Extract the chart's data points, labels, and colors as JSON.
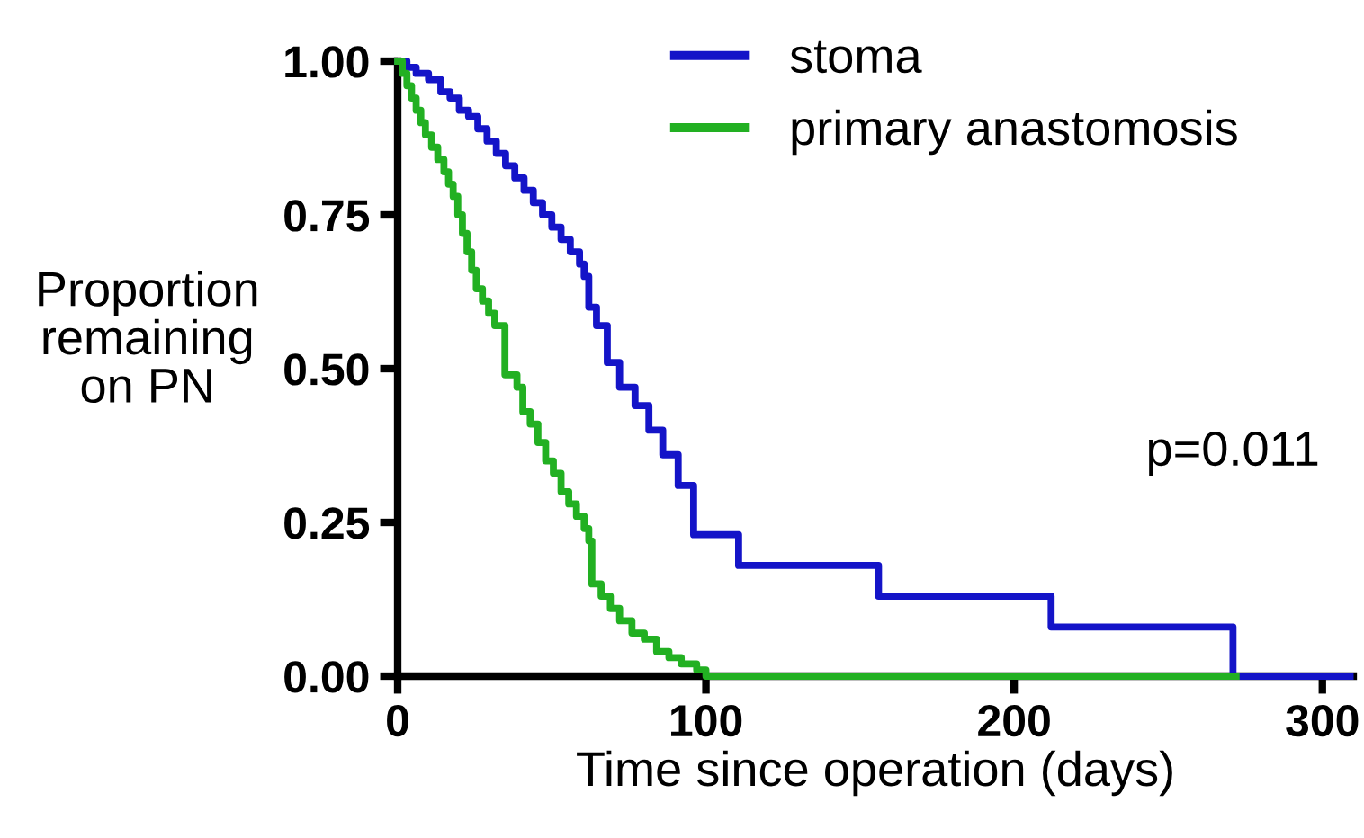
{
  "chart_data": {
    "type": "step",
    "xlabel": "Time since operation (days)",
    "ylabel": "Proportion\nremaining\non PN",
    "annotations": [
      "p=0.011"
    ],
    "series": [
      {
        "name": "stoma",
        "color": "#1414c8",
        "x": [
          0,
          3,
          6,
          10,
          14,
          17,
          20,
          23,
          26,
          29,
          32,
          35,
          38,
          41,
          44,
          47,
          50,
          53,
          56,
          59,
          60.5,
          62,
          64.5,
          68,
          72,
          77,
          81.5,
          86,
          91,
          96,
          110.6,
          156,
          212,
          271,
          309
        ],
        "values": [
          1.0,
          0.99,
          0.98,
          0.97,
          0.95,
          0.94,
          0.92,
          0.91,
          0.89,
          0.87,
          0.85,
          0.83,
          0.81,
          0.79,
          0.77,
          0.75,
          0.73,
          0.71,
          0.69,
          0.67,
          0.65,
          0.6,
          0.57,
          0.51,
          0.47,
          0.44,
          0.4,
          0.36,
          0.31,
          0.23,
          0.18,
          0.13,
          0.08,
          0.0,
          0.0
        ]
      },
      {
        "name": "primary anastomosis",
        "color": "#22b022",
        "x": [
          0,
          1.5,
          3,
          4.5,
          6,
          7.5,
          9,
          11,
          13,
          15,
          16.5,
          18,
          19.5,
          21,
          22.5,
          24,
          25.5,
          27.5,
          29.5,
          31.5,
          34.8,
          38.7,
          40.6,
          43,
          45.5,
          48,
          50.5,
          53,
          55.5,
          58,
          60.5,
          62,
          63,
          66,
          69,
          72,
          76,
          80,
          84,
          88,
          92,
          97,
          100,
          272
        ],
        "values": [
          1.0,
          0.98,
          0.96,
          0.94,
          0.92,
          0.9,
          0.88,
          0.86,
          0.84,
          0.82,
          0.8,
          0.78,
          0.75,
          0.72,
          0.69,
          0.66,
          0.63,
          0.61,
          0.59,
          0.57,
          0.49,
          0.47,
          0.43,
          0.41,
          0.38,
          0.35,
          0.33,
          0.3,
          0.28,
          0.26,
          0.24,
          0.22,
          0.15,
          0.13,
          0.11,
          0.09,
          0.07,
          0.06,
          0.04,
          0.03,
          0.02,
          0.01,
          0.0,
          0.0
        ]
      }
    ],
    "xlim": [
      0,
      310
    ],
    "xticks": [
      0,
      100,
      200,
      300
    ],
    "ylim": [
      0,
      1.0
    ],
    "yticks": [
      {
        "value": 0,
        "label": "0.00"
      },
      {
        "value": 0.25,
        "label": "0.25"
      },
      {
        "value": 0.5,
        "label": "0.50"
      },
      {
        "value": 0.75,
        "label": "0.75"
      },
      {
        "value": 1.0,
        "label": "1.00"
      }
    ],
    "legend": "top",
    "grid": false,
    "line_style": "solid"
  }
}
